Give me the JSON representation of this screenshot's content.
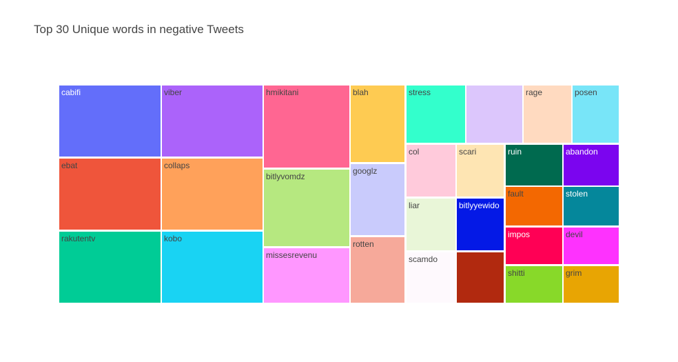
{
  "title": "Top 30 Unique words in negative Tweets",
  "chart_data": {
    "type": "treemap",
    "title": "Top 30 Unique words in negative Tweets",
    "tiles": [
      {
        "label": "cabifi",
        "color": "#636efa",
        "text_color": "#ffffff"
      },
      {
        "label": "ebat",
        "color": "#ef553b",
        "text_color": "#444444"
      },
      {
        "label": "rakutentv",
        "color": "#00cc96",
        "text_color": "#444444"
      },
      {
        "label": "viber",
        "color": "#ab63fa",
        "text_color": "#444444"
      },
      {
        "label": "collaps",
        "color": "#ffa15a",
        "text_color": "#444444"
      },
      {
        "label": "kobo",
        "color": "#19d3f3",
        "text_color": "#444444"
      },
      {
        "label": "hmikitani",
        "color": "#ff6692",
        "text_color": "#444444"
      },
      {
        "label": "bitlyvomdz",
        "color": "#b6e880",
        "text_color": "#444444"
      },
      {
        "label": "missesrevenu",
        "color": "#ff97ff",
        "text_color": "#444444"
      },
      {
        "label": "blah",
        "color": "#fecb52",
        "text_color": "#444444"
      },
      {
        "label": "googlz",
        "color": "#c9cbfc",
        "text_color": "#444444"
      },
      {
        "label": "rotten",
        "color": "#f6a99a",
        "text_color": "#444444"
      },
      {
        "label": "stress",
        "color": "#33ffcc",
        "text_color": "#444444"
      },
      {
        "label": "",
        "color": "#dcc6fc",
        "text_color": "#444444"
      },
      {
        "label": "rage",
        "color": "#ffdac0",
        "text_color": "#444444"
      },
      {
        "label": "posen",
        "color": "#78e5f8",
        "text_color": "#444444"
      },
      {
        "label": "col",
        "color": "#ffcadb",
        "text_color": "#444444"
      },
      {
        "label": "scari",
        "color": "#fee5b3",
        "text_color": "#444444"
      },
      {
        "label": "ruin",
        "color": "#006a4f",
        "text_color": "#ffffff"
      },
      {
        "label": "abandon",
        "color": "#7b05ef",
        "text_color": "#ffffff"
      },
      {
        "label": "liar",
        "color": "#e9f6d8",
        "text_color": "#444444"
      },
      {
        "label": "bitlyyewido",
        "color": "#0419e6",
        "text_color": "#ffffff"
      },
      {
        "label": "fault",
        "color": "#f36801",
        "text_color": "#444444"
      },
      {
        "label": "stolen",
        "color": "#05879b",
        "text_color": "#ffffff"
      },
      {
        "label": "impos",
        "color": "#ff0055",
        "text_color": "#ffffff"
      },
      {
        "label": "devil",
        "color": "#fe32fe",
        "text_color": "#444444"
      },
      {
        "label": "scamdo",
        "color": "#fef9fd",
        "text_color": "#444444"
      },
      {
        "label": "",
        "color": "#b1290f",
        "text_color": "#444444"
      },
      {
        "label": "shitti",
        "color": "#88d929",
        "text_color": "#444444"
      },
      {
        "label": "grim",
        "color": "#e8a503",
        "text_color": "#444444"
      }
    ]
  }
}
